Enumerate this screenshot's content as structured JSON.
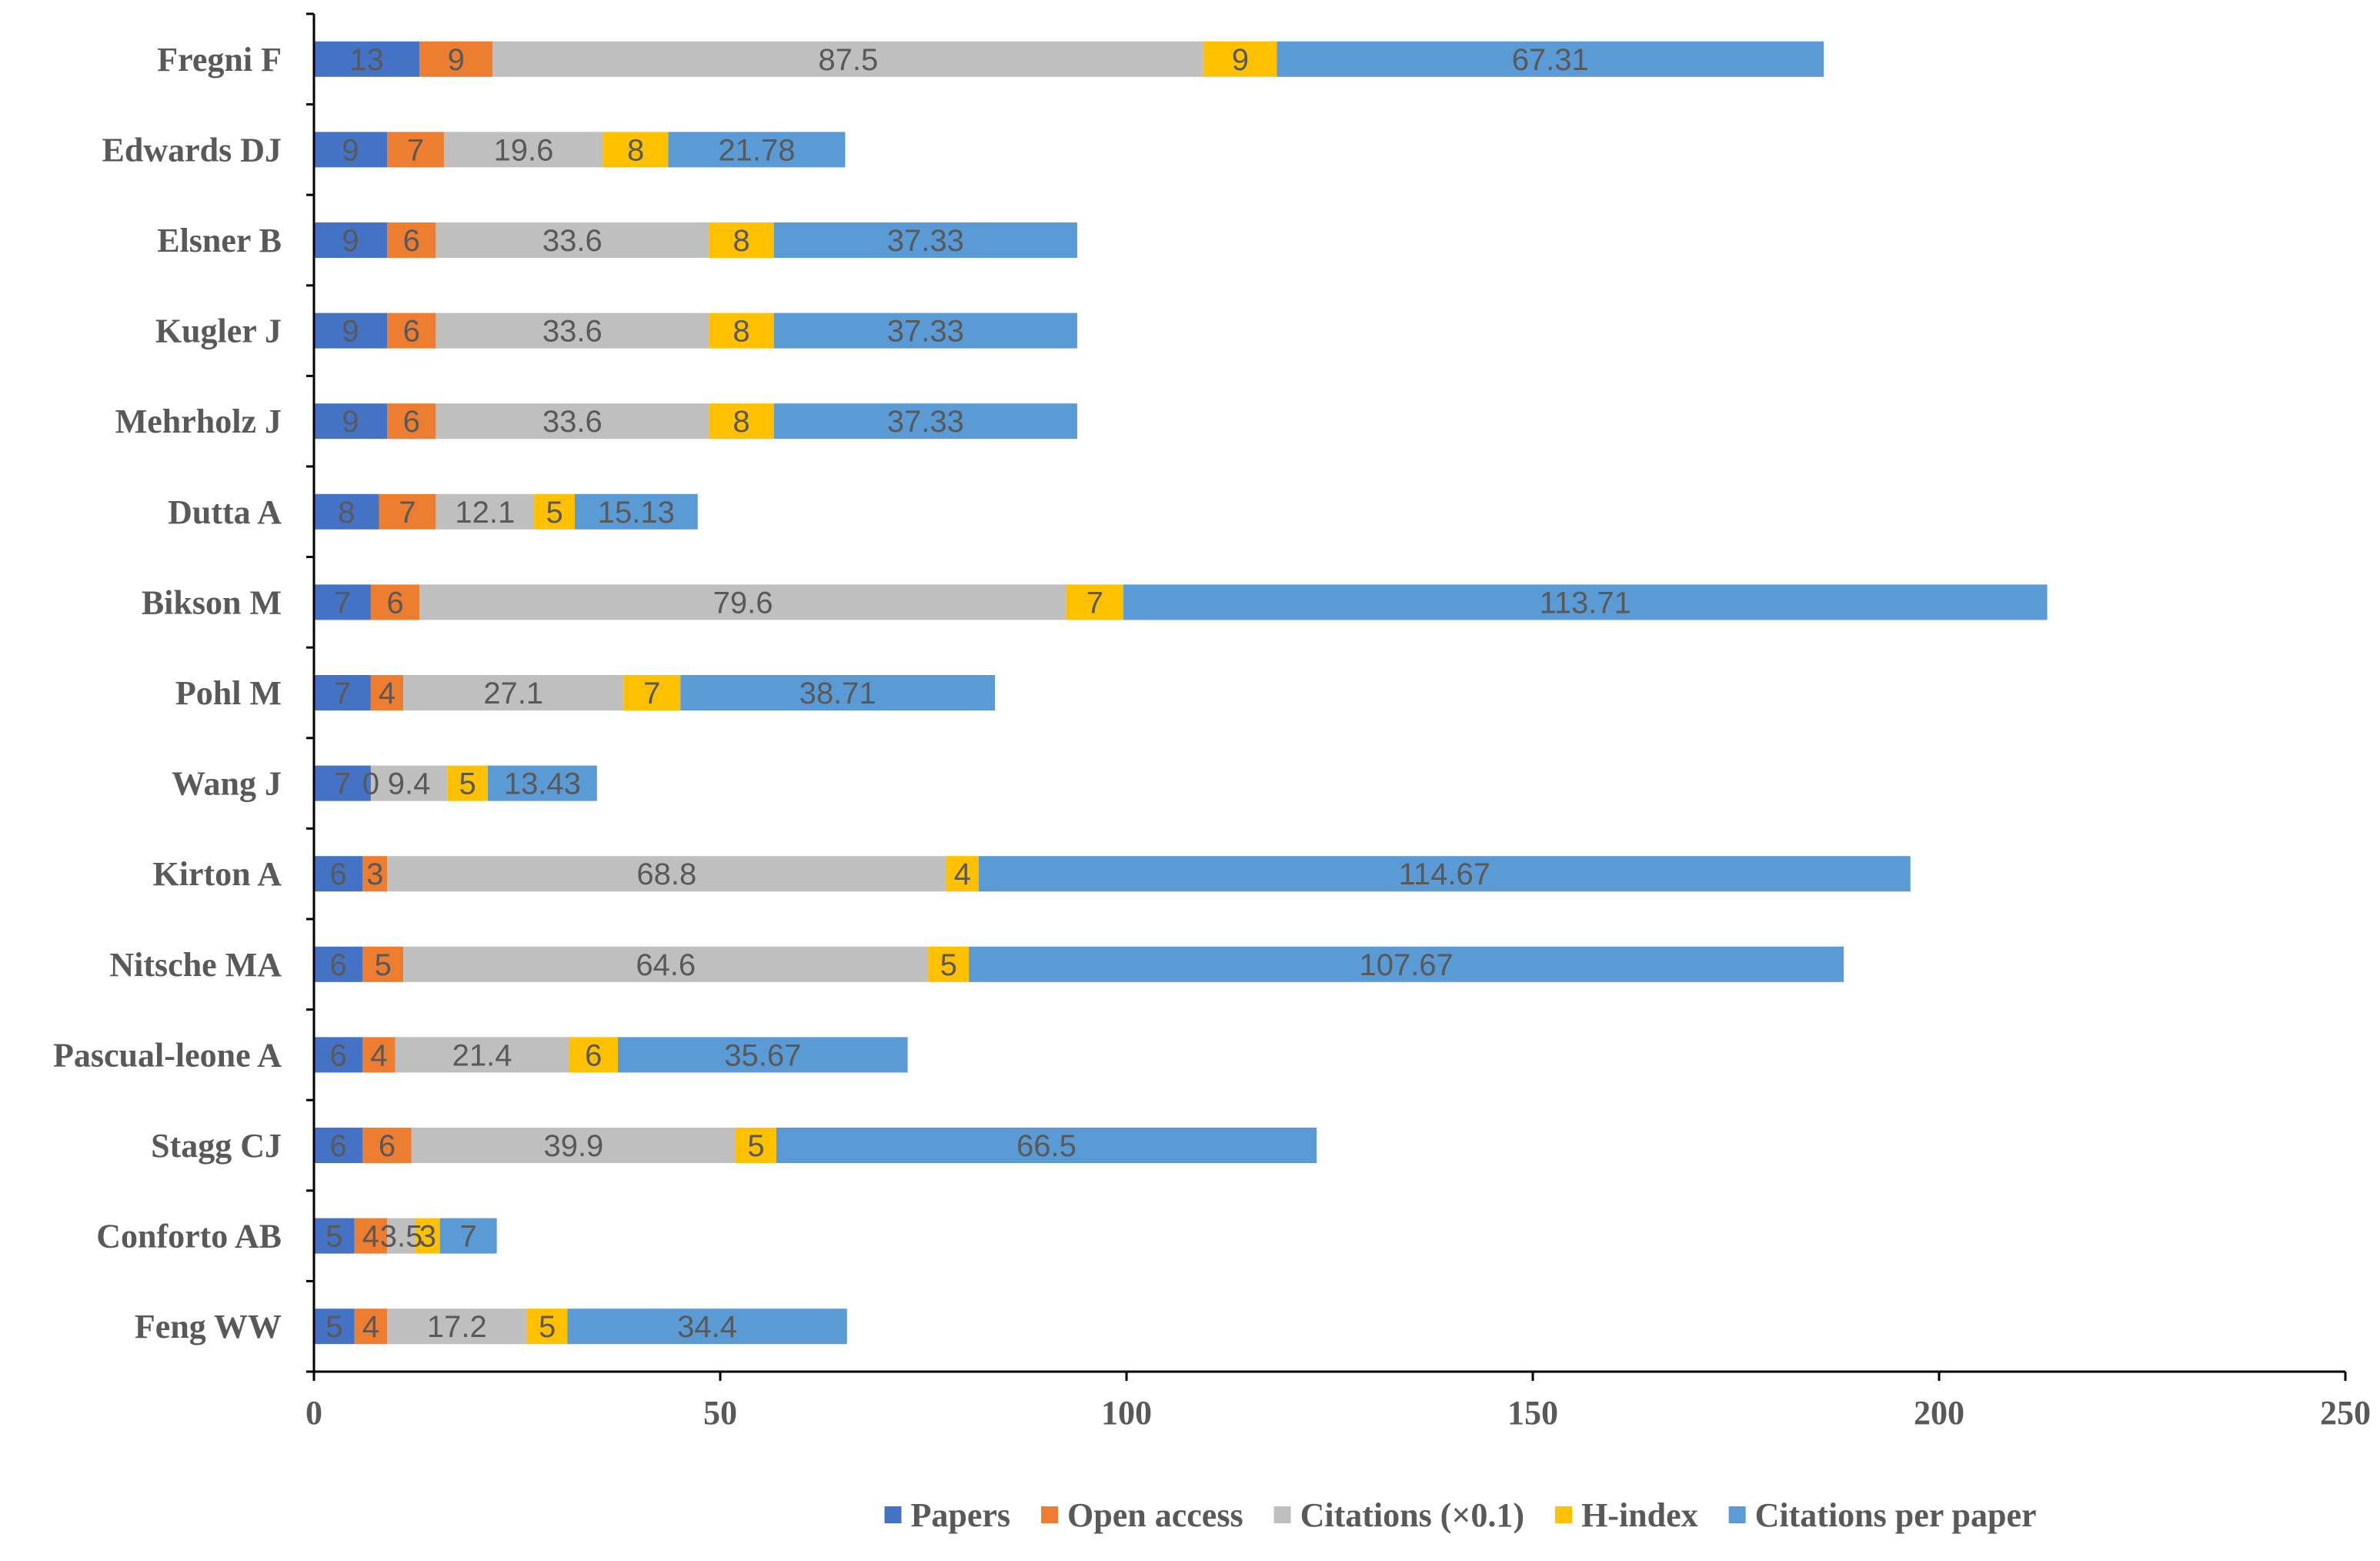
{
  "chart_data": {
    "type": "bar",
    "orientation": "horizontal",
    "stacked": true,
    "title": "",
    "xlabel": "",
    "ylabel": "",
    "xlim": [
      0,
      250
    ],
    "xticks": [
      "0",
      "50",
      "100",
      "150",
      "200",
      "250"
    ],
    "grid": false,
    "legend_position": "bottom",
    "categories": [
      "Fregni F",
      "Edwards DJ",
      "Elsner B",
      "Kugler J",
      "Mehrholz J",
      "Dutta A",
      "Bikson M",
      "Pohl M",
      "Wang J",
      "Kirton A",
      "Nitsche MA",
      "Pascual-leone A",
      "Stagg CJ",
      "Conforto AB",
      "Feng WW"
    ],
    "series": [
      {
        "name": "Papers",
        "color": "#4472C4",
        "values": [
          13,
          9,
          9,
          9,
          9,
          8,
          7,
          7,
          7,
          6,
          6,
          6,
          6,
          5,
          5
        ],
        "labels": [
          "13",
          "9",
          "9",
          "9",
          "9",
          "8",
          "7",
          "7",
          "7",
          "6",
          "6",
          "6",
          "6",
          "5",
          "5"
        ]
      },
      {
        "name": "Open access",
        "color": "#ED7D31",
        "values": [
          9,
          7,
          6,
          6,
          6,
          7,
          6,
          4,
          0,
          3,
          5,
          4,
          6,
          4,
          4
        ],
        "labels": [
          "9",
          "7",
          "6",
          "6",
          "6",
          "7",
          "6",
          "4",
          "0",
          "3",
          "5",
          "4",
          "6",
          "4",
          "4"
        ]
      },
      {
        "name": "Citations (×0.1)",
        "color": "#BFBFBF",
        "values": [
          87.5,
          19.6,
          33.6,
          33.6,
          33.6,
          12.1,
          79.6,
          27.1,
          9.4,
          68.8,
          64.6,
          21.4,
          39.9,
          3.5,
          17.2
        ],
        "labels": [
          "87.5",
          "19.6",
          "33.6",
          "33.6",
          "33.6",
          "12.1",
          "79.6",
          "27.1",
          "9.4",
          "68.8",
          "64.6",
          "21.4",
          "39.9",
          "3.5",
          "17.2"
        ]
      },
      {
        "name": "H-index",
        "color": "#FFC000",
        "values": [
          9,
          8,
          8,
          8,
          8,
          5,
          7,
          7,
          5,
          4,
          5,
          6,
          5,
          3,
          5
        ],
        "labels": [
          "9",
          "8",
          "8",
          "8",
          "8",
          "5",
          "7",
          "7",
          "5",
          "4",
          "5",
          "6",
          "5",
          "3",
          "5"
        ]
      },
      {
        "name": "Citations per paper",
        "color": "#5B9BD5",
        "values": [
          67.31,
          21.78,
          37.33,
          37.33,
          37.33,
          15.13,
          113.71,
          38.71,
          13.43,
          114.67,
          107.67,
          35.67,
          66.5,
          7,
          34.4
        ],
        "labels": [
          "67.31",
          "21.78",
          "37.33",
          "37.33",
          "37.33",
          "15.13",
          "113.71",
          "38.71",
          "13.43",
          "114.67",
          "107.67",
          "35.67",
          "66.5",
          "7",
          "34.4"
        ]
      }
    ]
  }
}
